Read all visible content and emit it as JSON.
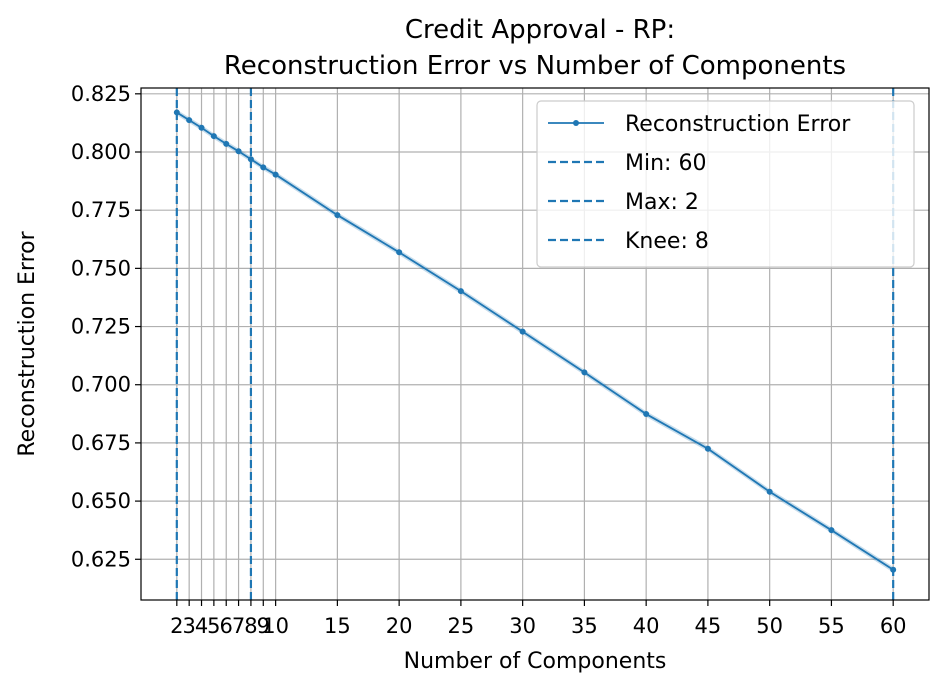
{
  "chart_data": {
    "type": "line",
    "title": "Credit Approval - RP:",
    "subtitle": "Reconstruction Error vs Number of Components",
    "xlabel": "Number of Components",
    "ylabel": "Reconstruction Error",
    "xlim": [
      -0.9,
      62.9
    ],
    "ylim": [
      0.6075,
      0.8275
    ],
    "xticks": [
      2,
      3,
      4,
      5,
      6,
      7,
      8,
      9,
      10,
      15,
      20,
      25,
      30,
      35,
      40,
      45,
      50,
      55,
      60
    ],
    "yticks": [
      0.625,
      0.65,
      0.675,
      0.7,
      0.725,
      0.75,
      0.775,
      0.8,
      0.825
    ],
    "ytick_labels": [
      "0.625",
      "0.650",
      "0.675",
      "0.700",
      "0.725",
      "0.750",
      "0.775",
      "0.800",
      "0.825"
    ],
    "grid": true,
    "legend_position": "top-right",
    "series": [
      {
        "name": "Reconstruction Error",
        "color": "#1f77b4",
        "x": [
          2,
          3,
          4,
          5,
          6,
          7,
          8,
          9,
          10,
          15,
          20,
          25,
          30,
          35,
          40,
          45,
          50,
          55,
          60
        ],
        "y": [
          0.817,
          0.8137,
          0.8104,
          0.8068,
          0.8035,
          0.8003,
          0.7969,
          0.7934,
          0.7903,
          0.7729,
          0.7569,
          0.7402,
          0.7228,
          0.7053,
          0.6874,
          0.6725,
          0.654,
          0.6375,
          0.6205
        ],
        "band": 0.0012
      }
    ],
    "vlines": [
      {
        "label": "Min: 60",
        "x": 60,
        "color": "#1f77b4"
      },
      {
        "label": "Max: 2",
        "x": 2,
        "color": "#1f77b4"
      },
      {
        "label": "Knee: 8",
        "x": 8,
        "color": "#1f77b4"
      }
    ]
  }
}
